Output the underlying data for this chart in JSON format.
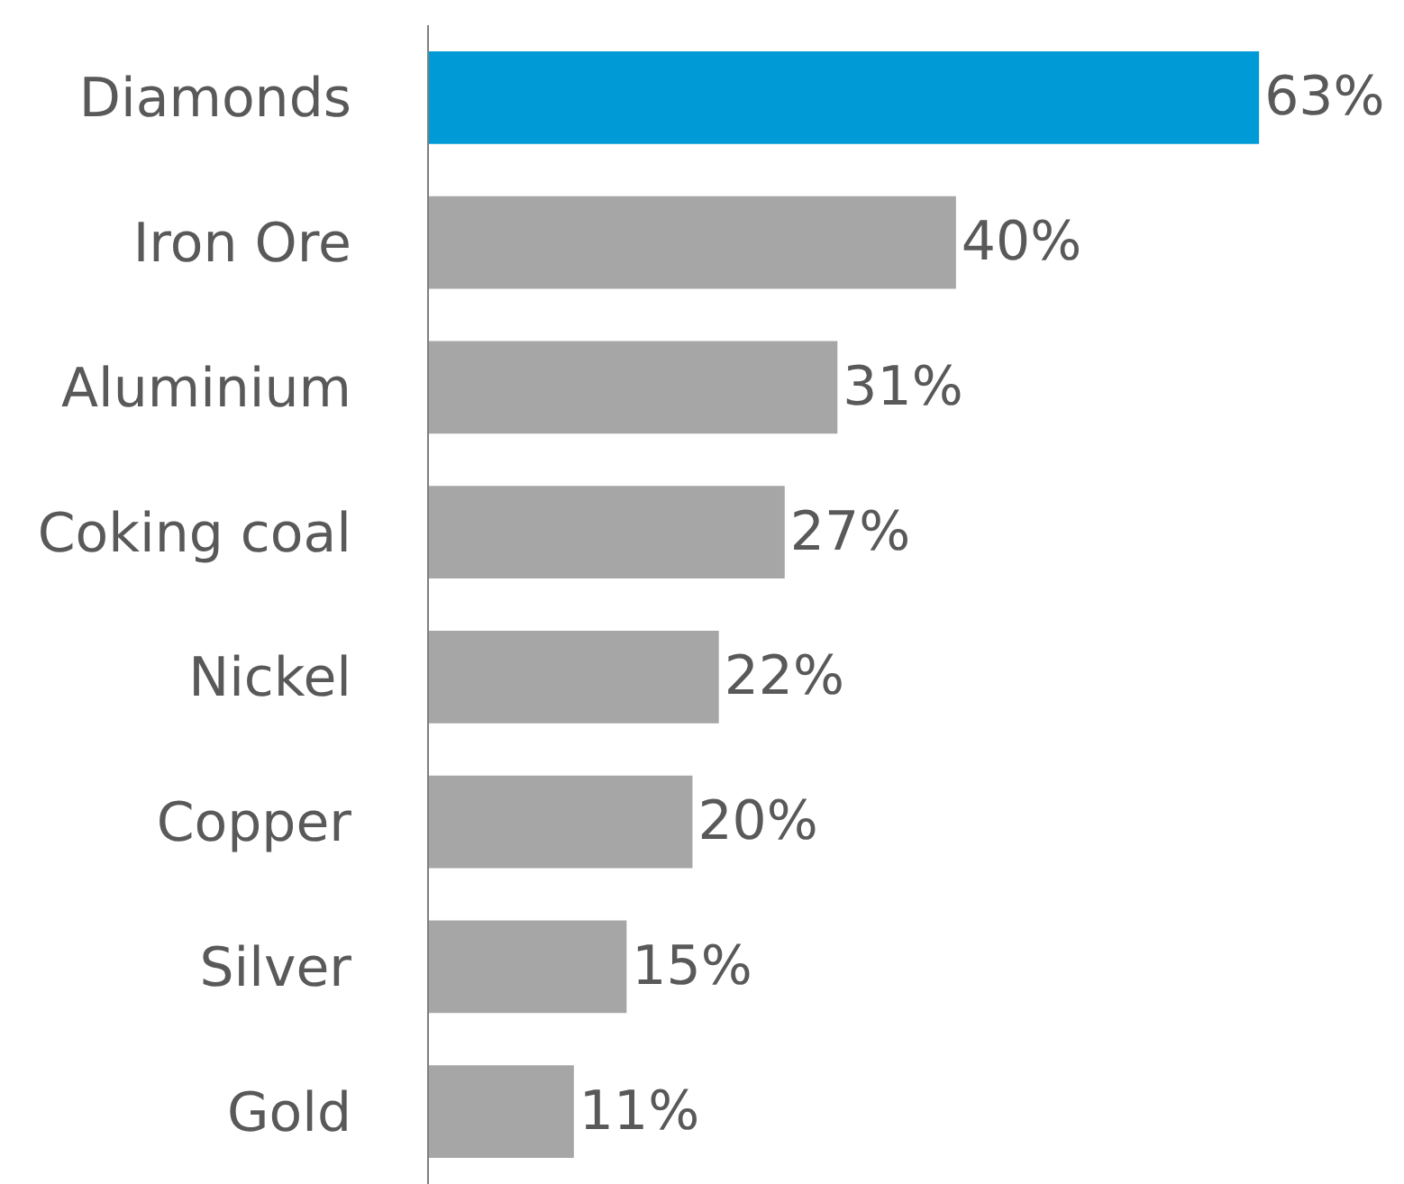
{
  "chart_data": {
    "type": "bar",
    "orientation": "horizontal",
    "categories": [
      "Diamonds",
      "Iron Ore",
      "Aluminium",
      "Coking coal",
      "Nickel",
      "Copper",
      "Silver",
      "Gold"
    ],
    "values": [
      63,
      40,
      31,
      27,
      22,
      20,
      15,
      11
    ],
    "colors": [
      "#009bd6",
      "#a6a6a6",
      "#a6a6a6",
      "#a6a6a6",
      "#a6a6a6",
      "#a6a6a6",
      "#a6a6a6",
      "#a6a6a6"
    ],
    "value_labels": [
      "63%",
      "40%",
      "31%",
      "27%",
      "22%",
      "20%",
      "15%",
      "11%"
    ],
    "xlim": [
      0,
      74
    ],
    "tick_labels": "y"
  }
}
